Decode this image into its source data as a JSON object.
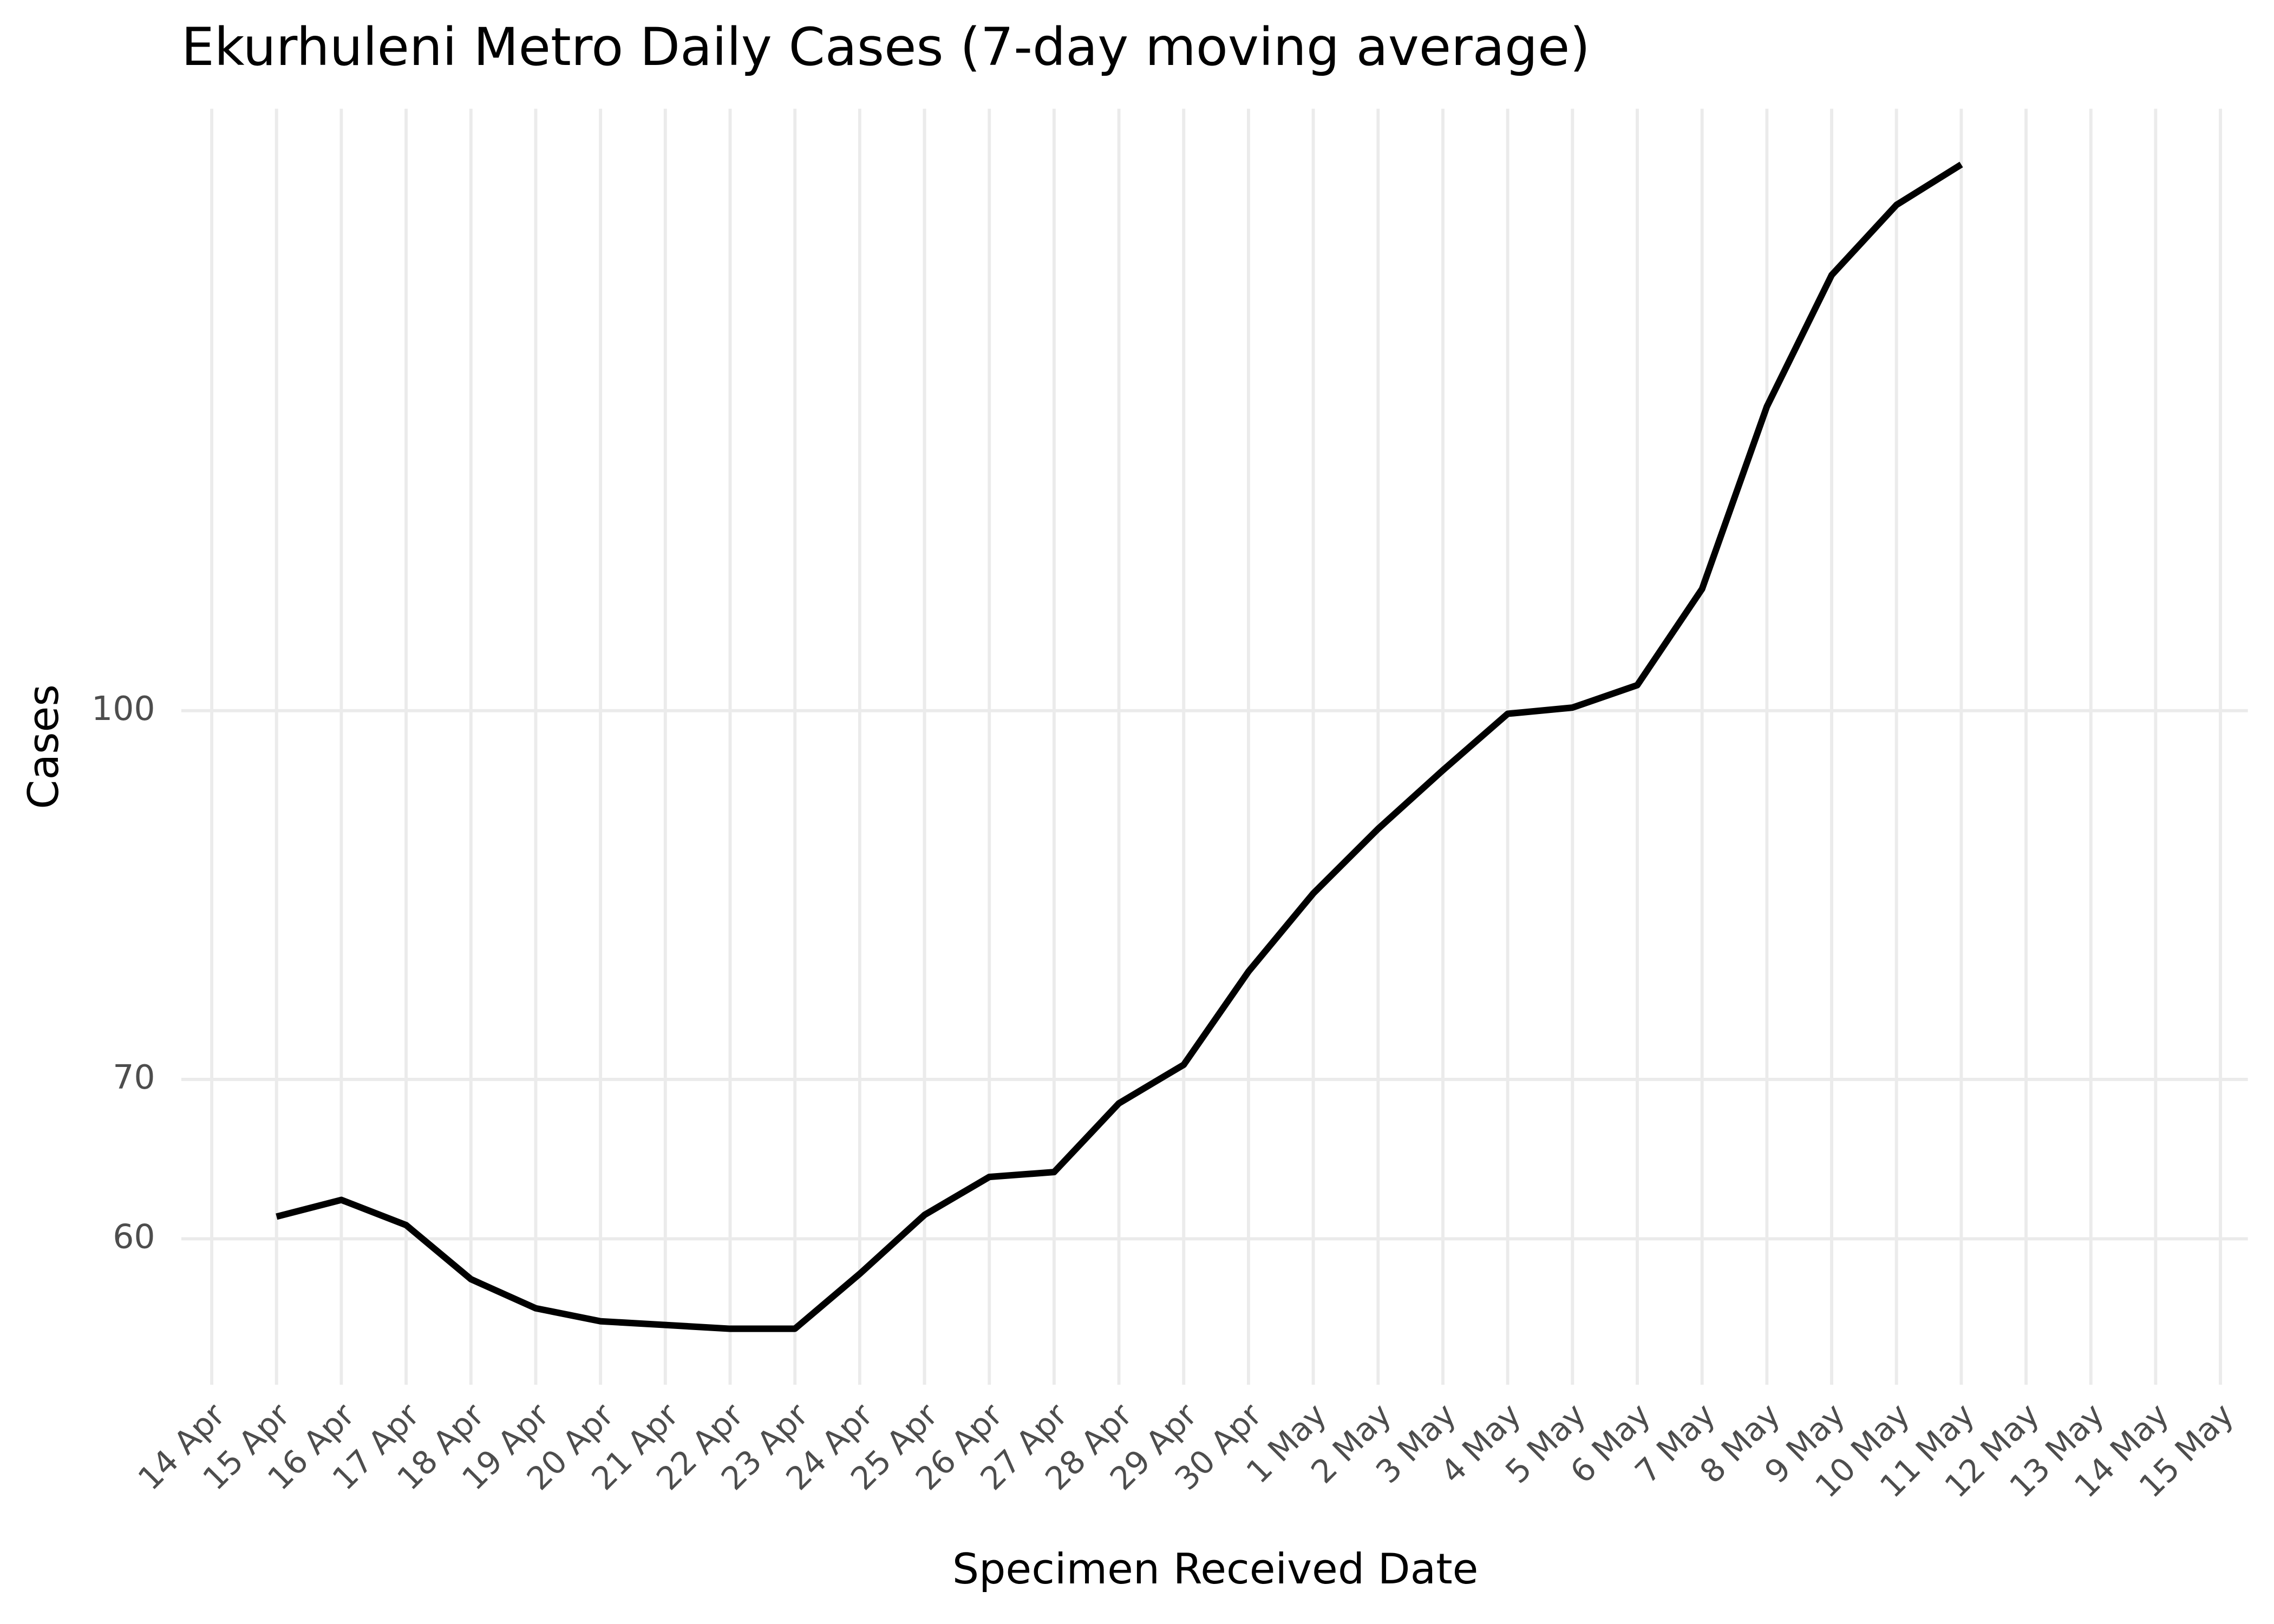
{
  "chart_data": {
    "type": "line",
    "title": "Ekurhuleni Metro Daily Cases (7-day moving average)",
    "x_label": "Specimen Received Date",
    "y_label": "Cases",
    "categories": [
      "14 Apr",
      "15 Apr",
      "16 Apr",
      "17 Apr",
      "18 Apr",
      "19 Apr",
      "20 Apr",
      "21 Apr",
      "22 Apr",
      "23 Apr",
      "24 Apr",
      "25 Apr",
      "26 Apr",
      "27 Apr",
      "28 Apr",
      "29 Apr",
      "30 Apr",
      "1 May",
      "2 May",
      "3 May",
      "4 May",
      "5 May",
      "6 May",
      "7 May",
      "8 May",
      "9 May",
      "10 May",
      "11 May",
      "12 May",
      "13 May",
      "14 May",
      "15 May"
    ],
    "series": [
      {
        "name": "Cases",
        "color": "#000000",
        "values": [
          null,
          61.3,
          62.3,
          60.8,
          57.7,
          56.1,
          55.4,
          55.2,
          55.0,
          55.0,
          58.0,
          61.4,
          63.7,
          64.0,
          68.4,
          71.0,
          77.7,
          83.8,
          89.2,
          94.4,
          99.7,
          100.3,
          102.5,
          112.5,
          134.2,
          152.4,
          163.1,
          169.6,
          null,
          null,
          null,
          null
        ]
      }
    ],
    "ylim": [
      52.1,
      179
    ],
    "yticks": [
      60,
      70,
      100
    ],
    "log_y": true,
    "grid": true
  }
}
